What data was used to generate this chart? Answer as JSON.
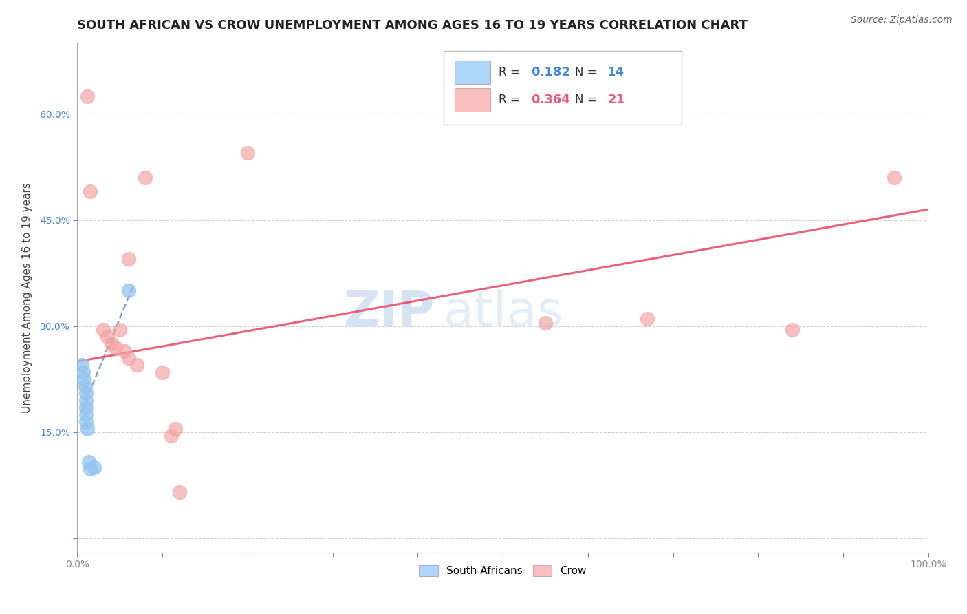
{
  "title": "SOUTH AFRICAN VS CROW UNEMPLOYMENT AMONG AGES 16 TO 19 YEARS CORRELATION CHART",
  "source": "Source: ZipAtlas.com",
  "ylabel": "Unemployment Among Ages 16 to 19 years",
  "xlim": [
    0.0,
    1.0
  ],
  "ylim": [
    -0.02,
    0.7
  ],
  "xticks": [
    0.0,
    0.1,
    0.2,
    0.3,
    0.4,
    0.5,
    0.6,
    0.7,
    0.8,
    0.9,
    1.0
  ],
  "ytick_vals": [
    0.0,
    0.15,
    0.3,
    0.45,
    0.6
  ],
  "ytick_labels": [
    "",
    "15.0%",
    "30.0%",
    "45.0%",
    "60.0%"
  ],
  "xtick_labels": [
    "0.0%",
    "",
    "",
    "",
    "",
    "",
    "",
    "",
    "",
    "",
    "100.0%"
  ],
  "watermark_zip": "ZIP",
  "watermark_atlas": "atlas",
  "blue_points": [
    [
      0.005,
      0.245
    ],
    [
      0.007,
      0.235
    ],
    [
      0.008,
      0.225
    ],
    [
      0.009,
      0.215
    ],
    [
      0.01,
      0.205
    ],
    [
      0.01,
      0.195
    ],
    [
      0.01,
      0.185
    ],
    [
      0.01,
      0.175
    ],
    [
      0.01,
      0.165
    ],
    [
      0.012,
      0.155
    ],
    [
      0.013,
      0.108
    ],
    [
      0.015,
      0.098
    ],
    [
      0.02,
      0.1
    ],
    [
      0.06,
      0.35
    ]
  ],
  "pink_points": [
    [
      0.012,
      0.625
    ],
    [
      0.015,
      0.49
    ],
    [
      0.03,
      0.295
    ],
    [
      0.035,
      0.285
    ],
    [
      0.04,
      0.275
    ],
    [
      0.045,
      0.27
    ],
    [
      0.05,
      0.295
    ],
    [
      0.055,
      0.265
    ],
    [
      0.06,
      0.255
    ],
    [
      0.06,
      0.395
    ],
    [
      0.07,
      0.245
    ],
    [
      0.08,
      0.51
    ],
    [
      0.1,
      0.235
    ],
    [
      0.11,
      0.145
    ],
    [
      0.115,
      0.155
    ],
    [
      0.12,
      0.065
    ],
    [
      0.2,
      0.545
    ],
    [
      0.55,
      0.305
    ],
    [
      0.67,
      0.31
    ],
    [
      0.84,
      0.295
    ],
    [
      0.96,
      0.51
    ]
  ],
  "blue_trend_x": [
    0.005,
    0.065
  ],
  "blue_trend_y": [
    0.18,
    0.355
  ],
  "pink_trend_x": [
    0.0,
    1.0
  ],
  "pink_trend_y": [
    0.25,
    0.465
  ],
  "blue_R": "0.182",
  "blue_N": "14",
  "pink_R": "0.364",
  "pink_N": "21",
  "legend_labels": [
    "South Africans",
    "Crow"
  ],
  "blue_color": "#94C4F0",
  "pink_color": "#F4A0A0",
  "blue_fill_color": "#AED6F8",
  "pink_fill_color": "#FAC0C0",
  "blue_trend_color": "#5588CC",
  "pink_trend_color": "#E8506A",
  "blue_text_color": "#4488DD",
  "pink_text_color": "#EE5577",
  "title_fontsize": 13,
  "source_fontsize": 10,
  "axis_label_fontsize": 11,
  "tick_fontsize": 10,
  "watermark_fontsize_zip": 52,
  "watermark_fontsize_atlas": 52
}
